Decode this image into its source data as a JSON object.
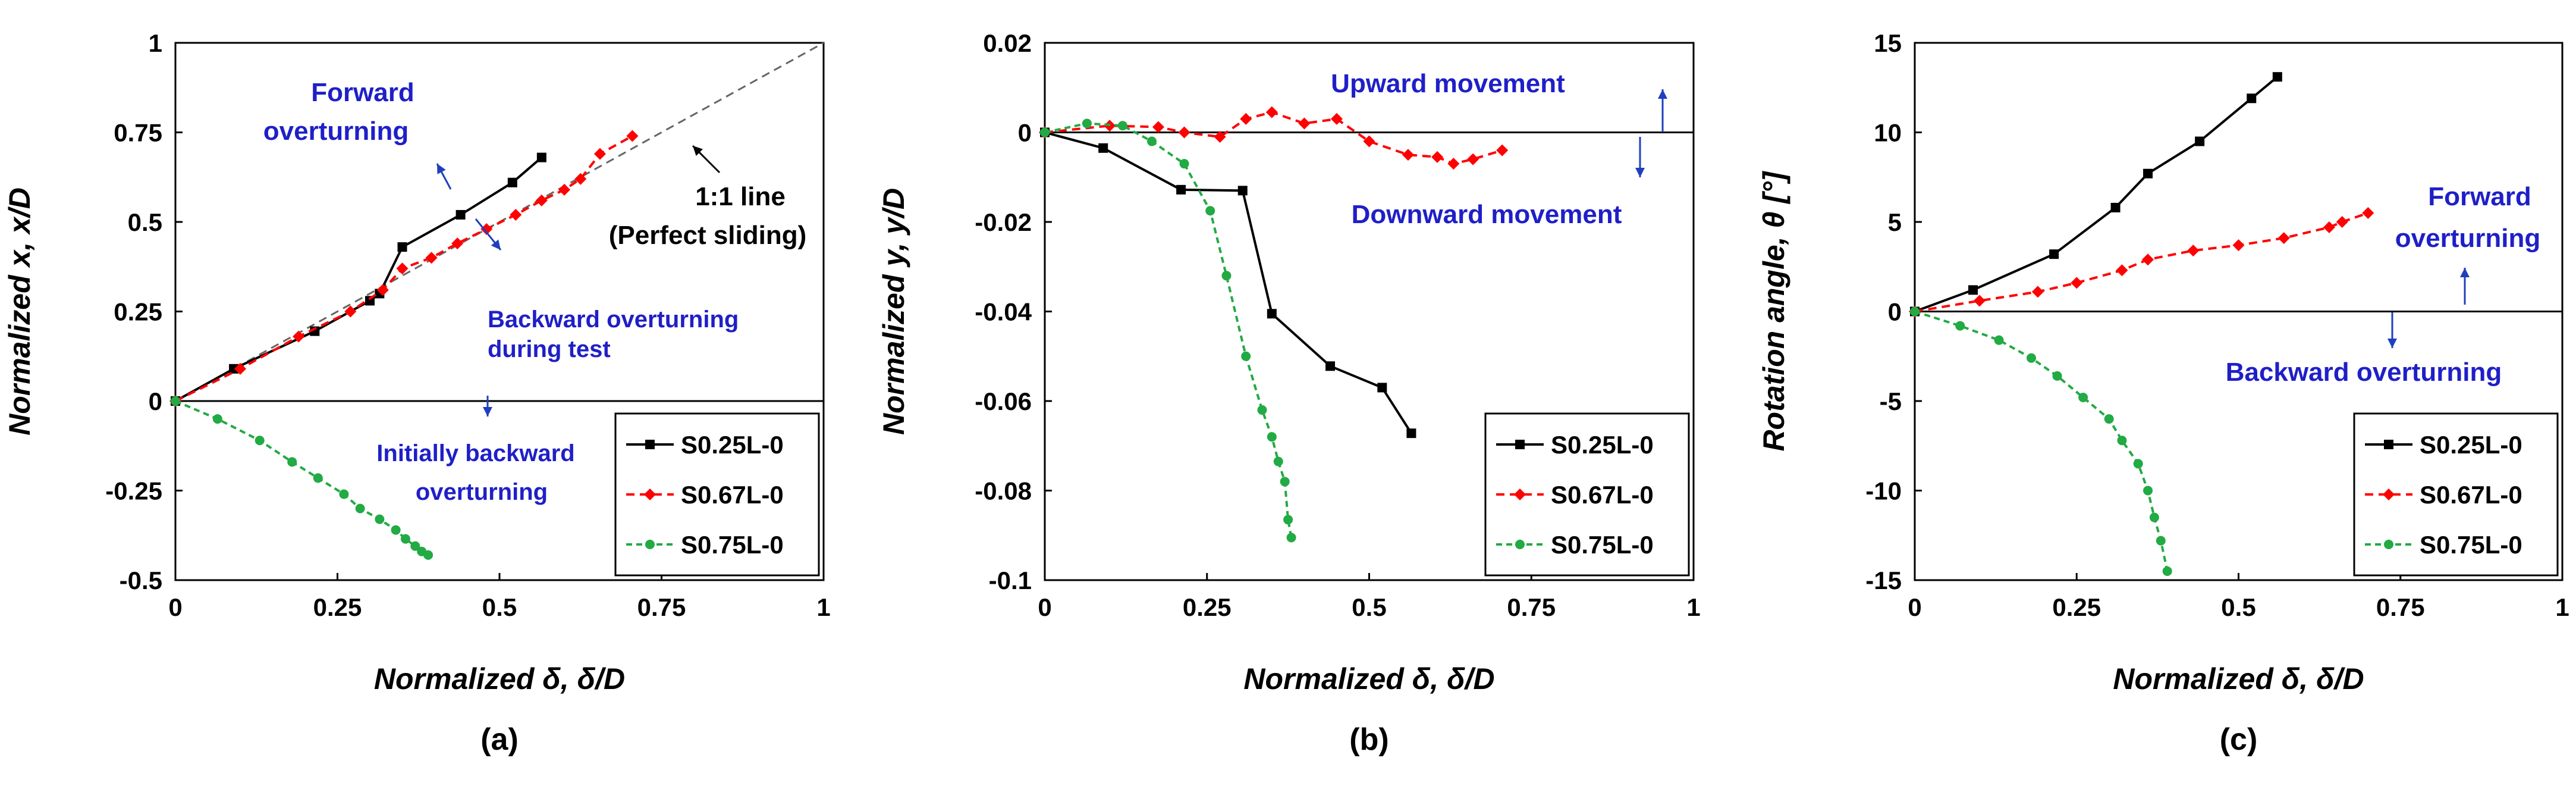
{
  "chart_data": [
    {
      "type": "line",
      "panel_label": "(a)",
      "xlabel": "Normalized δ, δ/D",
      "ylabel": "Normalized x, x/D",
      "xlim": [
        0,
        1
      ],
      "ylim": [
        -0.5,
        1
      ],
      "xticks": [
        "0",
        "0.25",
        "0.5",
        "0.75",
        "1"
      ],
      "yticks": [
        "-0.5",
        "-0.25",
        "0",
        "0.25",
        "0.5",
        "0.75",
        "1"
      ],
      "annotations": {
        "forward_1": "Forward",
        "forward_2": "overturning",
        "line_1": "1:1 line",
        "line_2": "(Perfect sliding)",
        "backward_1": "Backward overturning",
        "backward_2": "during test",
        "initial_1": "Initially backward",
        "initial_2": "overturning"
      },
      "legend": [
        "S0.25L-0",
        "S0.67L-0",
        "S0.75L-0"
      ],
      "series": [
        {
          "name": "S0.25L-0",
          "points": [
            [
              0,
              0
            ],
            [
              0.09,
              0.09
            ],
            [
              0.215,
              0.195
            ],
            [
              0.3,
              0.28
            ],
            [
              0.315,
              0.3
            ],
            [
              0.35,
              0.43
            ],
            [
              0.44,
              0.52
            ],
            [
              0.52,
              0.61
            ],
            [
              0.565,
              0.68
            ]
          ]
        },
        {
          "name": "S0.67L-0",
          "points": [
            [
              0,
              0
            ],
            [
              0.1,
              0.09
            ],
            [
              0.19,
              0.18
            ],
            [
              0.27,
              0.25
            ],
            [
              0.32,
              0.31
            ],
            [
              0.35,
              0.37
            ],
            [
              0.395,
              0.4
            ],
            [
              0.435,
              0.44
            ],
            [
              0.48,
              0.48
            ],
            [
              0.525,
              0.52
            ],
            [
              0.565,
              0.56
            ],
            [
              0.6,
              0.59
            ],
            [
              0.625,
              0.62
            ],
            [
              0.655,
              0.69
            ],
            [
              0.705,
              0.74
            ]
          ]
        },
        {
          "name": "S0.75L-0",
          "points": [
            [
              0,
              0
            ],
            [
              0.065,
              -0.05
            ],
            [
              0.13,
              -0.11
            ],
            [
              0.18,
              -0.17
            ],
            [
              0.22,
              -0.215
            ],
            [
              0.26,
              -0.26
            ],
            [
              0.285,
              -0.3
            ],
            [
              0.315,
              -0.33
            ],
            [
              0.34,
              -0.36
            ],
            [
              0.355,
              -0.385
            ],
            [
              0.37,
              -0.405
            ],
            [
              0.38,
              -0.42
            ],
            [
              0.39,
              -0.43
            ]
          ]
        }
      ]
    },
    {
      "type": "line",
      "panel_label": "(b)",
      "xlabel": "Normalized δ, δ/D",
      "ylabel": "Normalized y, y/D",
      "xlim": [
        0,
        1
      ],
      "ylim": [
        -0.1,
        0.02
      ],
      "xticks": [
        "0",
        "0.25",
        "0.5",
        "0.75",
        "1"
      ],
      "yticks": [
        "-0.1",
        "-0.08",
        "-0.06",
        "-0.04",
        "-0.02",
        "0",
        "0.02"
      ],
      "annotations": {
        "up": "Upward movement",
        "down": "Downward movement"
      },
      "legend": [
        "S0.25L-0",
        "S0.67L-0",
        "S0.75L-0"
      ],
      "series": [
        {
          "name": "S0.25L-0",
          "points": [
            [
              0,
              0
            ],
            [
              0.09,
              -0.0035
            ],
            [
              0.21,
              -0.0128
            ],
            [
              0.305,
              -0.013
            ],
            [
              0.35,
              -0.0405
            ],
            [
              0.44,
              -0.0522
            ],
            [
              0.52,
              -0.057
            ],
            [
              0.565,
              -0.0672
            ]
          ]
        },
        {
          "name": "S0.67L-0",
          "points": [
            [
              0,
              0
            ],
            [
              0.1,
              0.0015
            ],
            [
              0.175,
              0.0012
            ],
            [
              0.215,
              0
            ],
            [
              0.27,
              -0.001
            ],
            [
              0.31,
              0.003
            ],
            [
              0.35,
              0.0045
            ],
            [
              0.4,
              0.002
            ],
            [
              0.45,
              0.003
            ],
            [
              0.5,
              -0.002
            ],
            [
              0.56,
              -0.005
            ],
            [
              0.605,
              -0.0055
            ],
            [
              0.63,
              -0.007
            ],
            [
              0.66,
              -0.006
            ],
            [
              0.705,
              -0.004
            ]
          ]
        },
        {
          "name": "S0.75L-0",
          "points": [
            [
              0,
              0
            ],
            [
              0.065,
              0.002
            ],
            [
              0.12,
              0.0015
            ],
            [
              0.165,
              -0.002
            ],
            [
              0.215,
              -0.007
            ],
            [
              0.255,
              -0.0175
            ],
            [
              0.28,
              -0.032
            ],
            [
              0.31,
              -0.05
            ],
            [
              0.335,
              -0.062
            ],
            [
              0.35,
              -0.068
            ],
            [
              0.36,
              -0.0735
            ],
            [
              0.37,
              -0.078
            ],
            [
              0.375,
              -0.0865
            ],
            [
              0.38,
              -0.0905
            ]
          ]
        }
      ]
    },
    {
      "type": "line",
      "panel_label": "(c)",
      "xlabel": "Normalized δ, δ/D",
      "ylabel": "Rotation angle, θ [°]",
      "xlim": [
        0,
        1
      ],
      "ylim": [
        -15,
        15
      ],
      "xticks": [
        "0",
        "0.25",
        "0.5",
        "0.75",
        "1"
      ],
      "yticks": [
        "-15",
        "-10",
        "-5",
        "0",
        "5",
        "10",
        "15"
      ],
      "annotations": {
        "forward_1": "Forward",
        "forward_2": "overturning",
        "backward": "Backward overturning"
      },
      "legend": [
        "S0.25L-0",
        "S0.67L-0",
        "S0.75L-0"
      ],
      "series": [
        {
          "name": "S0.25L-0",
          "points": [
            [
              0,
              0
            ],
            [
              0.09,
              1.2
            ],
            [
              0.215,
              3.2
            ],
            [
              0.31,
              5.8
            ],
            [
              0.36,
              7.7
            ],
            [
              0.44,
              9.5
            ],
            [
              0.52,
              11.9
            ],
            [
              0.56,
              13.1
            ]
          ]
        },
        {
          "name": "S0.67L-0",
          "points": [
            [
              0,
              0
            ],
            [
              0.1,
              0.6
            ],
            [
              0.19,
              1.1
            ],
            [
              0.25,
              1.6
            ],
            [
              0.32,
              2.3
            ],
            [
              0.36,
              2.9
            ],
            [
              0.43,
              3.4
            ],
            [
              0.5,
              3.7
            ],
            [
              0.57,
              4.1
            ],
            [
              0.64,
              4.7
            ],
            [
              0.66,
              5.0
            ],
            [
              0.7,
              5.5
            ]
          ]
        },
        {
          "name": "S0.75L-0",
          "points": [
            [
              0,
              0
            ],
            [
              0.07,
              -0.8
            ],
            [
              0.13,
              -1.6
            ],
            [
              0.18,
              -2.6
            ],
            [
              0.22,
              -3.6
            ],
            [
              0.26,
              -4.8
            ],
            [
              0.3,
              -6.0
            ],
            [
              0.32,
              -7.2
            ],
            [
              0.345,
              -8.5
            ],
            [
              0.36,
              -10
            ],
            [
              0.37,
              -11.5
            ],
            [
              0.38,
              -12.8
            ],
            [
              0.39,
              -14.5
            ]
          ]
        }
      ]
    }
  ],
  "colors": {
    "S0.25L-0": "#000000",
    "S0.67L-0": "#ff0000",
    "S0.75L-0": "#22aa44",
    "annotation_blue": "#1f1fc8",
    "arrow_blue": "#1f3fbf"
  }
}
